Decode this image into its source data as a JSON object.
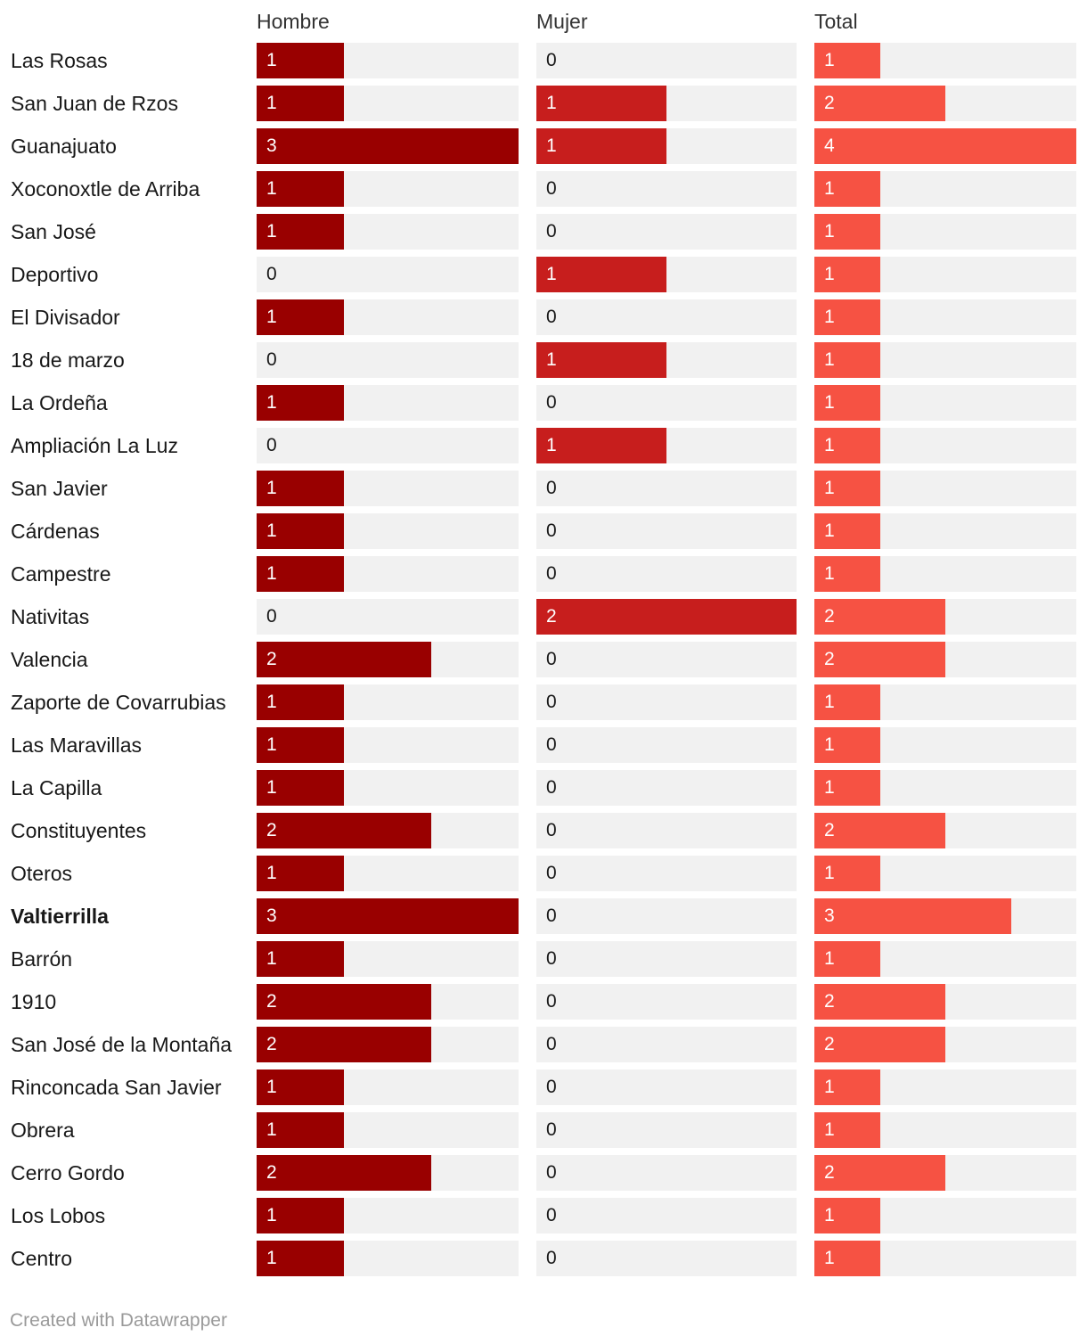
{
  "chart_data": {
    "type": "bar",
    "series": [
      {
        "name": "Hombre",
        "color": "#990000",
        "max": 3,
        "values": [
          1,
          1,
          3,
          1,
          1,
          0,
          1,
          0,
          1,
          0,
          1,
          1,
          1,
          0,
          2,
          1,
          1,
          1,
          2,
          1,
          3,
          1,
          2,
          2,
          1,
          1,
          2,
          1,
          1
        ]
      },
      {
        "name": "Mujer",
        "color": "#c71e1d",
        "max": 2,
        "values": [
          0,
          1,
          1,
          0,
          0,
          1,
          0,
          1,
          0,
          1,
          0,
          0,
          0,
          2,
          0,
          0,
          0,
          0,
          0,
          0,
          0,
          0,
          0,
          0,
          0,
          0,
          0,
          0,
          0
        ]
      },
      {
        "name": "Total",
        "color": "#f65243",
        "max": 4,
        "values": [
          1,
          2,
          4,
          1,
          1,
          1,
          1,
          1,
          1,
          1,
          1,
          1,
          1,
          2,
          2,
          1,
          1,
          1,
          2,
          1,
          3,
          1,
          2,
          2,
          1,
          1,
          2,
          1,
          1
        ]
      }
    ],
    "categories": [
      "Las Rosas",
      "San Juan de Rzos",
      "Guanajuato",
      "Xoconoxtle de Arriba",
      "San José",
      "Deportivo",
      "El Divisador",
      "18 de marzo",
      "La Ordeña",
      "Ampliación La Luz",
      "San Javier",
      "Cárdenas",
      "Campestre",
      "Nativitas",
      "Valencia",
      "Zaporte de Covarrubias",
      "Las Maravillas",
      "La Capilla",
      "Constituyentes",
      "Oteros",
      "Valtierrilla",
      "Barrón",
      "1910",
      "San José de la Montaña",
      "Rinconcada San Javier",
      "Obrera",
      "Cerro Gordo",
      "Los Lobos",
      "Centro"
    ],
    "highlighted_category": "Valtierrilla",
    "track_color": "#f1f1f1"
  },
  "footer": {
    "credit": "Created with Datawrapper"
  }
}
